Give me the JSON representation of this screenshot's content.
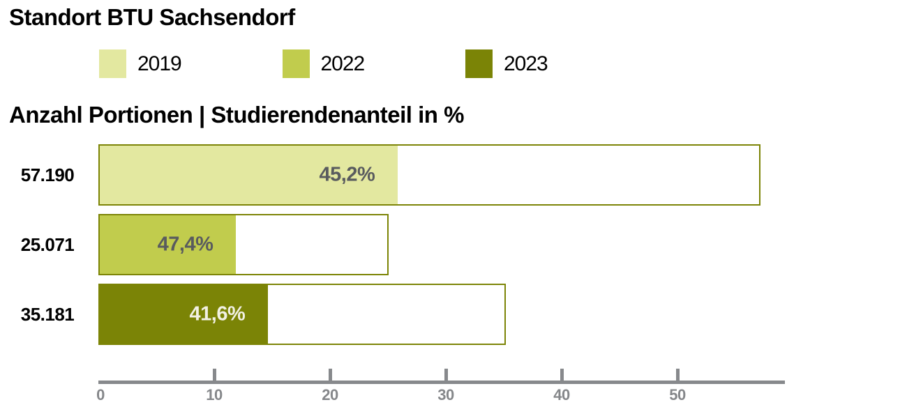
{
  "title": "Standort BTU Sachsendorf",
  "subtitle": "Anzahl Portionen | Studierendenanteil in %",
  "colors": {
    "year_2019": "#e3e8a0",
    "year_2022": "#c1cc4d",
    "year_2023": "#7b8406",
    "bar_outline": "#7c8406",
    "axis_gray": "#87898c",
    "tick_label_gray": "#85878a",
    "pct_text_dark": "#595b5e",
    "pct_text_light": "#f2f1e4"
  },
  "legend": {
    "position": "top",
    "items": [
      {
        "label": "2019",
        "color": "#e3e8a0"
      },
      {
        "label": "2022",
        "color": "#c1cc4d"
      },
      {
        "label": "2023",
        "color": "#7b8406"
      }
    ]
  },
  "chart_data": {
    "type": "bar",
    "orientation": "horizontal",
    "title": "Standort BTU Sachsendorf",
    "subtitle": "Anzahl Portionen | Studierendenanteil in %",
    "rows": [
      {
        "year": "2019",
        "portions_label": "57.190",
        "portions_thousands": 57.19,
        "share_pct_label": "45,2%",
        "share_pct": 45.2,
        "fill_color": "#e3e8a0",
        "pct_text_color": "#595b5e"
      },
      {
        "year": "2022",
        "portions_label": "25.071",
        "portions_thousands": 25.071,
        "share_pct_label": "47,4%",
        "share_pct": 47.4,
        "fill_color": "#c1cc4d",
        "pct_text_color": "#595b5e"
      },
      {
        "year": "2023",
        "portions_label": "35.181",
        "portions_thousands": 35.181,
        "share_pct_label": "41,6%",
        "share_pct": 41.6,
        "fill_color": "#7b8406",
        "pct_text_color": "#f2f1e4"
      }
    ],
    "axis": {
      "min": 0,
      "max": 59.3,
      "ticks": [
        0,
        10,
        20,
        30,
        40,
        50
      ],
      "tick_labels": [
        "0",
        "10",
        "20",
        "30",
        "40",
        "50"
      ],
      "grid": false
    }
  }
}
